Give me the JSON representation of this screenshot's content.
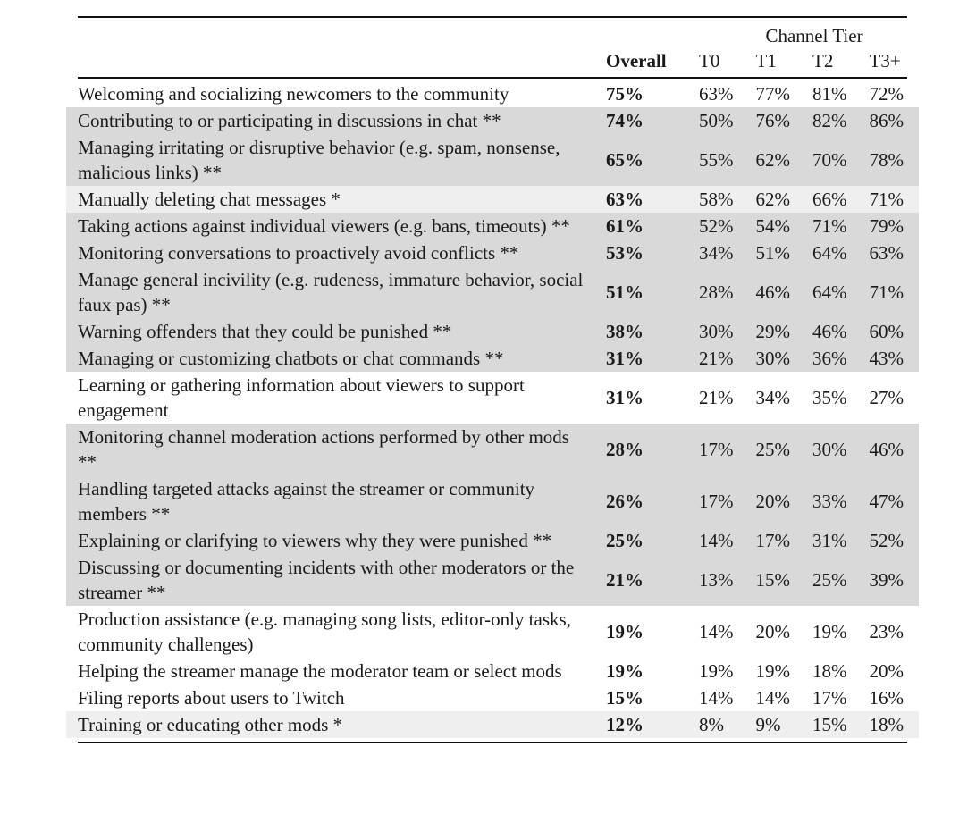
{
  "header": {
    "group_label": "Channel Tier",
    "overall_label": "Overall",
    "tiers": [
      "T0",
      "T1",
      "T2",
      "T3+"
    ]
  },
  "rows": [
    {
      "label": "Welcoming and socializing newcomers to the community",
      "overall": "75%",
      "tiers": [
        "63%",
        "77%",
        "81%",
        "72%"
      ]
    },
    {
      "label": "Contributing to or participating in discussions in chat **",
      "overall": "74%",
      "tiers": [
        "50%",
        "76%",
        "82%",
        "86%"
      ]
    },
    {
      "label": "Managing irritating or disruptive behavior (e.g. spam, nonsense, malicious links) **",
      "overall": "65%",
      "tiers": [
        "55%",
        "62%",
        "70%",
        "78%"
      ]
    },
    {
      "label": "Manually deleting chat messages *",
      "overall": "63%",
      "tiers": [
        "58%",
        "62%",
        "66%",
        "71%"
      ]
    },
    {
      "label": "Taking actions against individual viewers (e.g. bans, timeouts) **",
      "overall": "61%",
      "tiers": [
        "52%",
        "54%",
        "71%",
        "79%"
      ]
    },
    {
      "label": "Monitoring conversations to proactively avoid conflicts **",
      "overall": "53%",
      "tiers": [
        "34%",
        "51%",
        "64%",
        "63%"
      ]
    },
    {
      "label": "Manage general incivility (e.g. rudeness, immature behavior, social faux pas) **",
      "overall": "51%",
      "tiers": [
        "28%",
        "46%",
        "64%",
        "71%"
      ]
    },
    {
      "label": "Warning offenders that they could be punished **",
      "overall": "38%",
      "tiers": [
        "30%",
        "29%",
        "46%",
        "60%"
      ]
    },
    {
      "label": "Managing or customizing chatbots or chat commands **",
      "overall": "31%",
      "tiers": [
        "21%",
        "30%",
        "36%",
        "43%"
      ]
    },
    {
      "label": "Learning or gathering information about viewers to support engagement",
      "overall": "31%",
      "tiers": [
        "21%",
        "34%",
        "35%",
        "27%"
      ]
    },
    {
      "label": "Monitoring channel moderation actions performed by other mods **",
      "overall": "28%",
      "tiers": [
        "17%",
        "25%",
        "30%",
        "46%"
      ]
    },
    {
      "label": "Handling targeted attacks against the streamer or community members **",
      "overall": "26%",
      "tiers": [
        "17%",
        "20%",
        "33%",
        "47%"
      ]
    },
    {
      "label": "Explaining or clarifying to viewers why they were punished **",
      "overall": "25%",
      "tiers": [
        "14%",
        "17%",
        "31%",
        "52%"
      ]
    },
    {
      "label": "Discussing or documenting incidents with other moderators or the streamer **",
      "overall": "21%",
      "tiers": [
        "13%",
        "15%",
        "25%",
        "39%"
      ]
    },
    {
      "label": "Production assistance (e.g. managing song lists, editor-only tasks, community challenges)",
      "overall": "19%",
      "tiers": [
        "14%",
        "20%",
        "19%",
        "23%"
      ]
    },
    {
      "label": "Helping the streamer manage the moderator team or select mods",
      "overall": "19%",
      "tiers": [
        "19%",
        "19%",
        "18%",
        "20%"
      ]
    },
    {
      "label": "Filing reports about users to Twitch",
      "overall": "15%",
      "tiers": [
        "14%",
        "14%",
        "17%",
        "16%"
      ]
    },
    {
      "label": "Training or educating other mods *",
      "overall": "12%",
      "tiers": [
        "8%",
        "9%",
        "15%",
        "18%"
      ]
    }
  ]
}
